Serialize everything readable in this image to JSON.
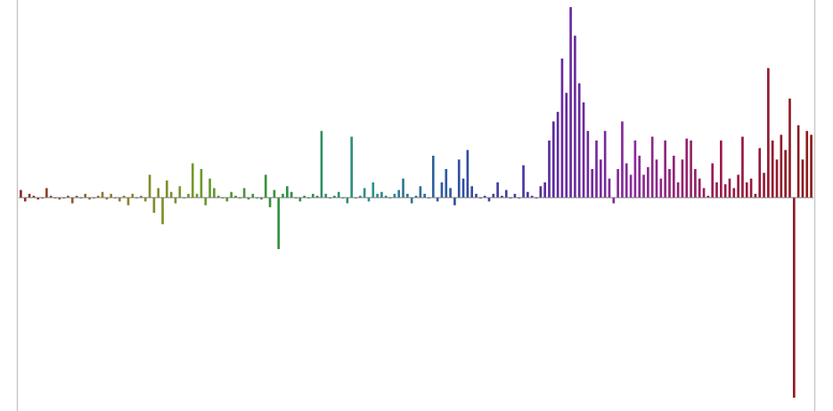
{
  "chart_data": {
    "type": "bar",
    "title": "",
    "xlabel": "",
    "ylabel": "",
    "ylim": [
      -1.12,
      1.0
    ],
    "grid": false,
    "legend": "none",
    "color_stops": [
      "#8b2a2a",
      "#9a7a2a",
      "#6f9a2a",
      "#2f8f3f",
      "#2f8f8f",
      "#2f4f9f",
      "#5a2a9f",
      "#8a2a9a",
      "#9a1a4a",
      "#8b1a1a"
    ],
    "values": [
      0.04,
      -0.02,
      0.02,
      0.01,
      -0.01,
      0.0,
      0.05,
      0.01,
      0.0,
      -0.01,
      0.0,
      0.01,
      -0.03,
      0.01,
      0.0,
      0.02,
      -0.01,
      0.0,
      0.01,
      0.03,
      -0.01,
      0.02,
      0.0,
      -0.02,
      0.01,
      -0.04,
      0.02,
      0.0,
      0.01,
      -0.02,
      0.12,
      -0.08,
      0.05,
      -0.14,
      0.09,
      0.03,
      -0.03,
      0.06,
      0.0,
      0.02,
      0.18,
      0.02,
      0.15,
      -0.04,
      0.1,
      0.05,
      0.01,
      0.0,
      -0.02,
      0.03,
      0.01,
      0.0,
      0.05,
      -0.01,
      0.02,
      0.0,
      -0.01,
      0.12,
      -0.05,
      0.04,
      -0.27,
      0.02,
      0.06,
      0.03,
      0.0,
      -0.02,
      0.01,
      0.0,
      0.02,
      0.01,
      0.35,
      0.02,
      0.0,
      0.01,
      0.03,
      0.0,
      -0.03,
      0.32,
      0.0,
      0.01,
      0.05,
      -0.02,
      0.08,
      0.02,
      0.03,
      0.01,
      0.0,
      0.02,
      0.04,
      0.1,
      0.02,
      -0.03,
      0.01,
      0.06,
      0.02,
      0.0,
      0.22,
      -0.02,
      0.08,
      0.15,
      0.05,
      -0.04,
      0.2,
      0.1,
      0.25,
      0.06,
      0.02,
      0.0,
      0.01,
      -0.02,
      0.02,
      0.08,
      0.01,
      0.04,
      0.0,
      0.02,
      0.0,
      0.17,
      0.03,
      0.01,
      0.0,
      0.06,
      0.08,
      0.3,
      0.4,
      0.45,
      0.73,
      0.55,
      1.0,
      0.85,
      0.6,
      0.5,
      0.35,
      0.15,
      0.3,
      0.2,
      0.35,
      0.1,
      -0.03,
      0.15,
      0.4,
      0.18,
      0.12,
      0.3,
      0.22,
      0.12,
      0.16,
      0.32,
      0.2,
      0.1,
      0.3,
      0.15,
      0.22,
      0.08,
      0.2,
      0.31,
      0.3,
      0.15,
      0.1,
      0.05,
      0.01,
      0.18,
      0.08,
      0.3,
      0.07,
      0.1,
      0.05,
      0.12,
      0.32,
      0.08,
      0.1,
      0.02,
      0.26,
      0.13,
      0.68,
      0.3,
      0.2,
      0.33,
      0.25,
      0.52,
      -1.05,
      0.38,
      0.2,
      0.35,
      0.33
    ]
  }
}
